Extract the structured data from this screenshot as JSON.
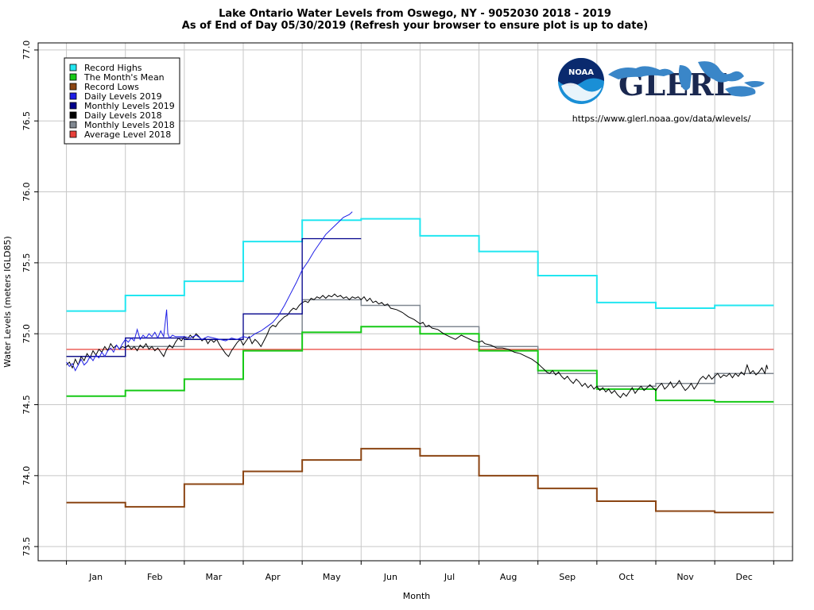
{
  "title_line1": "Lake Ontario Water Levels from Oswego, NY - 9052030 2018 - 2019",
  "title_line2": "As of End of Day 05/30/2019 (Refresh your browser to ensure plot is up to date)",
  "url": "https://www.glerl.noaa.gov/data/wlevels/",
  "logo": {
    "noaa_text": "NOAA",
    "glerl_text": "GLERL",
    "icon": "noaa-logo-icon",
    "map_icon": "great-lakes-map-icon"
  },
  "colors": {
    "record_highs": "#22e6f0",
    "month_mean": "#16c916",
    "record_lows": "#8b4513",
    "daily_2019": "#1e1ee6",
    "monthly_2019": "#00008b",
    "daily_2018": "#000000",
    "monthly_2018": "#808891",
    "average_2018": "#e8403a",
    "noaa_blue": "#1a8fd6",
    "glerl_navy": "#1a2850",
    "lakes_blue": "#3a86c8"
  },
  "chart_data": {
    "type": "line",
    "xlabel": "Month",
    "ylabel": "Water Levels (meters IGLD85)",
    "ylim": [
      73.4,
      77.05
    ],
    "xlim": [
      -0.48,
      12.32
    ],
    "yticks": [
      "73.5",
      "74.0",
      "74.5",
      "75.0",
      "75.5",
      "76.0",
      "76.5",
      "77.0"
    ],
    "ytick_values": [
      73.5,
      74.0,
      74.5,
      75.0,
      75.5,
      76.0,
      76.5,
      77.0
    ],
    "months": [
      "Jan",
      "Feb",
      "Mar",
      "Apr",
      "May",
      "Jun",
      "Jul",
      "Aug",
      "Sep",
      "Oct",
      "Nov",
      "Dec"
    ],
    "grid": true,
    "legend_position": "top-left",
    "legend": [
      "Record Highs",
      "The Month's Mean",
      "Record Lows",
      "Daily Levels 2019",
      "Monthly Levels 2019",
      "Daily Levels 2018",
      "Monthly Levels 2018",
      "Average Level 2018"
    ],
    "record_highs": [
      75.16,
      75.27,
      75.37,
      75.65,
      75.8,
      75.81,
      75.69,
      75.58,
      75.41,
      75.22,
      75.18,
      75.2
    ],
    "month_mean": [
      74.56,
      74.6,
      74.68,
      74.88,
      75.01,
      75.05,
      75.0,
      74.88,
      74.74,
      74.61,
      74.53,
      74.52
    ],
    "record_lows": [
      73.81,
      73.78,
      73.94,
      74.03,
      74.11,
      74.19,
      74.14,
      74.0,
      73.91,
      73.82,
      73.75,
      73.74
    ],
    "monthly_2019": [
      74.84,
      74.97,
      74.96,
      75.14,
      75.67
    ],
    "monthly_2018": [
      74.84,
      74.91,
      74.96,
      75.0,
      75.24,
      75.2,
      75.05,
      74.91,
      74.72,
      74.63,
      74.65,
      74.72
    ],
    "average_2018": 74.89,
    "daily_2019": [
      [
        0.0,
        74.8
      ],
      [
        0.05,
        74.77
      ],
      [
        0.1,
        74.79
      ],
      [
        0.15,
        74.74
      ],
      [
        0.2,
        74.78
      ],
      [
        0.25,
        74.82
      ],
      [
        0.3,
        74.78
      ],
      [
        0.35,
        74.8
      ],
      [
        0.4,
        74.84
      ],
      [
        0.45,
        74.81
      ],
      [
        0.5,
        74.85
      ],
      [
        0.55,
        74.83
      ],
      [
        0.6,
        74.87
      ],
      [
        0.65,
        74.84
      ],
      [
        0.7,
        74.88
      ],
      [
        0.75,
        74.9
      ],
      [
        0.8,
        74.87
      ],
      [
        0.85,
        74.92
      ],
      [
        0.9,
        74.89
      ],
      [
        0.95,
        74.93
      ],
      [
        1.0,
        74.96
      ],
      [
        1.05,
        74.94
      ],
      [
        1.1,
        74.97
      ],
      [
        1.15,
        74.95
      ],
      [
        1.2,
        75.03
      ],
      [
        1.25,
        74.96
      ],
      [
        1.3,
        74.99
      ],
      [
        1.35,
        74.97
      ],
      [
        1.4,
        75.0
      ],
      [
        1.45,
        74.98
      ],
      [
        1.5,
        75.01
      ],
      [
        1.55,
        74.97
      ],
      [
        1.6,
        75.02
      ],
      [
        1.65,
        74.98
      ],
      [
        1.7,
        75.17
      ],
      [
        1.72,
        75.0
      ],
      [
        1.75,
        74.97
      ],
      [
        1.8,
        74.99
      ],
      [
        1.85,
        74.98
      ],
      [
        2.0,
        74.98
      ],
      [
        2.1,
        74.97
      ],
      [
        2.2,
        74.99
      ],
      [
        2.3,
        74.96
      ],
      [
        2.4,
        74.98
      ],
      [
        2.5,
        74.97
      ],
      [
        2.6,
        74.96
      ],
      [
        2.7,
        74.95
      ],
      [
        2.8,
        74.97
      ],
      [
        2.9,
        74.96
      ],
      [
        3.0,
        74.98
      ],
      [
        3.1,
        74.97
      ],
      [
        3.2,
        75.0
      ],
      [
        3.3,
        75.02
      ],
      [
        3.4,
        75.05
      ],
      [
        3.5,
        75.08
      ],
      [
        3.6,
        75.13
      ],
      [
        3.7,
        75.2
      ],
      [
        3.8,
        75.28
      ],
      [
        3.9,
        75.36
      ],
      [
        4.0,
        75.45
      ],
      [
        4.1,
        75.51
      ],
      [
        4.2,
        75.58
      ],
      [
        4.3,
        75.64
      ],
      [
        4.4,
        75.7
      ],
      [
        4.5,
        75.74
      ],
      [
        4.6,
        75.78
      ],
      [
        4.7,
        75.82
      ],
      [
        4.8,
        75.84
      ],
      [
        4.85,
        75.86
      ]
    ],
    "daily_2018": [
      [
        0.0,
        74.78
      ],
      [
        0.05,
        74.8
      ],
      [
        0.1,
        74.76
      ],
      [
        0.15,
        74.82
      ],
      [
        0.2,
        74.78
      ],
      [
        0.25,
        74.84
      ],
      [
        0.3,
        74.81
      ],
      [
        0.35,
        74.86
      ],
      [
        0.4,
        74.83
      ],
      [
        0.45,
        74.88
      ],
      [
        0.5,
        74.85
      ],
      [
        0.55,
        74.89
      ],
      [
        0.6,
        74.87
      ],
      [
        0.65,
        74.91
      ],
      [
        0.7,
        74.88
      ],
      [
        0.75,
        74.93
      ],
      [
        0.8,
        74.9
      ],
      [
        0.85,
        74.92
      ],
      [
        0.9,
        74.89
      ],
      [
        0.95,
        74.91
      ],
      [
        1.0,
        74.9
      ],
      [
        1.05,
        74.92
      ],
      [
        1.1,
        74.89
      ],
      [
        1.15,
        74.91
      ],
      [
        1.2,
        74.88
      ],
      [
        1.25,
        74.92
      ],
      [
        1.3,
        74.9
      ],
      [
        1.35,
        74.93
      ],
      [
        1.4,
        74.89
      ],
      [
        1.45,
        74.91
      ],
      [
        1.5,
        74.88
      ],
      [
        1.55,
        74.9
      ],
      [
        1.6,
        74.87
      ],
      [
        1.65,
        74.84
      ],
      [
        1.7,
        74.89
      ],
      [
        1.75,
        74.92
      ],
      [
        1.8,
        74.9
      ],
      [
        1.85,
        74.94
      ],
      [
        1.9,
        74.97
      ],
      [
        1.95,
        74.95
      ],
      [
        2.0,
        74.98
      ],
      [
        2.05,
        74.96
      ],
      [
        2.1,
        74.99
      ],
      [
        2.15,
        74.97
      ],
      [
        2.2,
        75.0
      ],
      [
        2.25,
        74.98
      ],
      [
        2.3,
        74.95
      ],
      [
        2.35,
        74.97
      ],
      [
        2.4,
        74.93
      ],
      [
        2.45,
        74.96
      ],
      [
        2.5,
        74.94
      ],
      [
        2.55,
        74.96
      ],
      [
        2.6,
        74.92
      ],
      [
        2.65,
        74.89
      ],
      [
        2.7,
        74.86
      ],
      [
        2.75,
        74.84
      ],
      [
        2.8,
        74.88
      ],
      [
        2.85,
        74.91
      ],
      [
        2.9,
        74.94
      ],
      [
        2.95,
        74.96
      ],
      [
        3.0,
        74.92
      ],
      [
        3.05,
        74.95
      ],
      [
        3.1,
        74.98
      ],
      [
        3.15,
        74.93
      ],
      [
        3.2,
        74.96
      ],
      [
        3.25,
        74.94
      ],
      [
        3.3,
        74.91
      ],
      [
        3.35,
        74.95
      ],
      [
        3.4,
        74.99
      ],
      [
        3.45,
        75.04
      ],
      [
        3.5,
        75.06
      ],
      [
        3.55,
        75.05
      ],
      [
        3.6,
        75.08
      ],
      [
        3.65,
        75.1
      ],
      [
        3.7,
        75.12
      ],
      [
        3.75,
        75.13
      ],
      [
        3.8,
        75.16
      ],
      [
        3.85,
        75.18
      ],
      [
        3.9,
        75.17
      ],
      [
        3.95,
        75.2
      ],
      [
        4.0,
        75.22
      ],
      [
        4.05,
        75.23
      ],
      [
        4.1,
        75.22
      ],
      [
        4.15,
        75.25
      ],
      [
        4.2,
        75.24
      ],
      [
        4.25,
        75.26
      ],
      [
        4.3,
        75.25
      ],
      [
        4.35,
        75.27
      ],
      [
        4.4,
        75.25
      ],
      [
        4.45,
        75.27
      ],
      [
        4.5,
        75.26
      ],
      [
        4.55,
        75.28
      ],
      [
        4.6,
        75.26
      ],
      [
        4.65,
        75.27
      ],
      [
        4.7,
        75.25
      ],
      [
        4.75,
        75.26
      ],
      [
        4.8,
        75.24
      ],
      [
        4.85,
        75.26
      ],
      [
        4.9,
        75.25
      ],
      [
        4.95,
        75.26
      ],
      [
        5.0,
        75.24
      ],
      [
        5.05,
        75.26
      ],
      [
        5.1,
        75.23
      ],
      [
        5.15,
        75.25
      ],
      [
        5.2,
        75.22
      ],
      [
        5.25,
        75.23
      ],
      [
        5.3,
        75.21
      ],
      [
        5.35,
        75.22
      ],
      [
        5.4,
        75.2
      ],
      [
        5.45,
        75.21
      ],
      [
        5.5,
        75.18
      ],
      [
        5.6,
        75.17
      ],
      [
        5.7,
        75.15
      ],
      [
        5.8,
        75.12
      ],
      [
        5.9,
        75.1
      ],
      [
        6.0,
        75.07
      ],
      [
        6.05,
        75.08
      ],
      [
        6.1,
        75.05
      ],
      [
        6.15,
        75.06
      ],
      [
        6.2,
        75.04
      ],
      [
        6.3,
        75.03
      ],
      [
        6.4,
        75.0
      ],
      [
        6.5,
        74.98
      ],
      [
        6.6,
        74.96
      ],
      [
        6.7,
        74.99
      ],
      [
        6.8,
        74.97
      ],
      [
        6.9,
        74.95
      ],
      [
        7.0,
        74.94
      ],
      [
        7.05,
        74.95
      ],
      [
        7.1,
        74.93
      ],
      [
        7.2,
        74.92
      ],
      [
        7.3,
        74.9
      ],
      [
        7.4,
        74.9
      ],
      [
        7.5,
        74.89
      ],
      [
        7.6,
        74.87
      ],
      [
        7.7,
        74.86
      ],
      [
        7.8,
        74.84
      ],
      [
        7.9,
        74.82
      ],
      [
        8.0,
        74.79
      ],
      [
        8.05,
        74.77
      ],
      [
        8.1,
        74.75
      ],
      [
        8.15,
        74.73
      ],
      [
        8.2,
        74.72
      ],
      [
        8.25,
        74.74
      ],
      [
        8.3,
        74.71
      ],
      [
        8.35,
        74.73
      ],
      [
        8.4,
        74.7
      ],
      [
        8.45,
        74.68
      ],
      [
        8.5,
        74.7
      ],
      [
        8.55,
        74.67
      ],
      [
        8.6,
        74.65
      ],
      [
        8.65,
        74.68
      ],
      [
        8.7,
        74.66
      ],
      [
        8.75,
        74.63
      ],
      [
        8.8,
        74.65
      ],
      [
        8.85,
        74.62
      ],
      [
        8.9,
        74.64
      ],
      [
        8.95,
        74.61
      ],
      [
        9.0,
        74.63
      ],
      [
        9.05,
        74.6
      ],
      [
        9.1,
        74.62
      ],
      [
        9.15,
        74.59
      ],
      [
        9.2,
        74.61
      ],
      [
        9.25,
        74.58
      ],
      [
        9.3,
        74.6
      ],
      [
        9.35,
        74.57
      ],
      [
        9.4,
        74.55
      ],
      [
        9.45,
        74.58
      ],
      [
        9.5,
        74.56
      ],
      [
        9.55,
        74.59
      ],
      [
        9.6,
        74.62
      ],
      [
        9.65,
        74.58
      ],
      [
        9.7,
        74.61
      ],
      [
        9.75,
        74.63
      ],
      [
        9.8,
        74.6
      ],
      [
        9.85,
        74.62
      ],
      [
        9.9,
        74.64
      ],
      [
        9.95,
        74.62
      ],
      [
        10.0,
        74.6
      ],
      [
        10.05,
        74.63
      ],
      [
        10.1,
        74.65
      ],
      [
        10.15,
        74.61
      ],
      [
        10.2,
        74.63
      ],
      [
        10.25,
        74.66
      ],
      [
        10.3,
        74.62
      ],
      [
        10.35,
        74.64
      ],
      [
        10.4,
        74.67
      ],
      [
        10.45,
        74.63
      ],
      [
        10.5,
        74.6
      ],
      [
        10.55,
        74.62
      ],
      [
        10.6,
        74.65
      ],
      [
        10.65,
        74.61
      ],
      [
        10.7,
        74.64
      ],
      [
        10.75,
        74.68
      ],
      [
        10.8,
        74.7
      ],
      [
        10.85,
        74.68
      ],
      [
        10.9,
        74.71
      ],
      [
        10.95,
        74.68
      ],
      [
        11.0,
        74.7
      ],
      [
        11.05,
        74.72
      ],
      [
        11.1,
        74.69
      ],
      [
        11.15,
        74.71
      ],
      [
        11.2,
        74.7
      ],
      [
        11.25,
        74.72
      ],
      [
        11.3,
        74.69
      ],
      [
        11.35,
        74.72
      ],
      [
        11.4,
        74.7
      ],
      [
        11.45,
        74.73
      ],
      [
        11.5,
        74.71
      ],
      [
        11.55,
        74.78
      ],
      [
        11.6,
        74.72
      ],
      [
        11.65,
        74.74
      ],
      [
        11.7,
        74.71
      ],
      [
        11.75,
        74.73
      ],
      [
        11.8,
        74.76
      ],
      [
        11.85,
        74.72
      ],
      [
        11.88,
        74.78
      ],
      [
        11.9,
        74.75
      ]
    ]
  }
}
